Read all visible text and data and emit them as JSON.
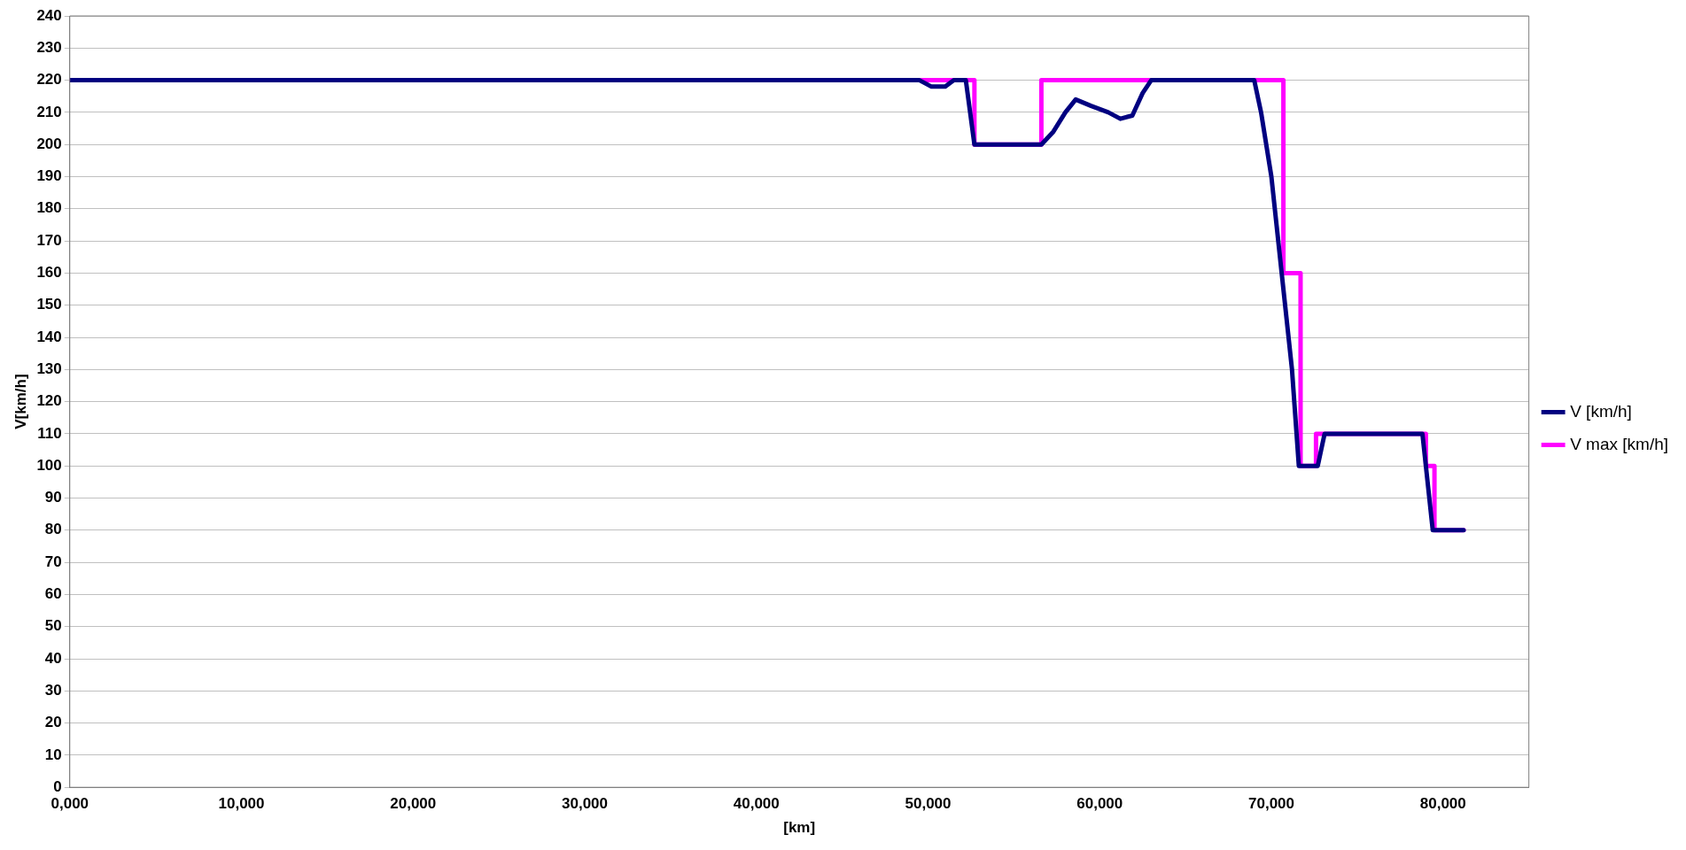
{
  "chart_data": {
    "type": "line",
    "xlabel": "[km]",
    "ylabel": "V[km/h]",
    "xlim": [
      0,
      85000
    ],
    "xticks": [
      {
        "value": 0,
        "label": "0,000"
      },
      {
        "value": 10000,
        "label": "10,000"
      },
      {
        "value": 20000,
        "label": "20,000"
      },
      {
        "value": 30000,
        "label": "30,000"
      },
      {
        "value": 40000,
        "label": "40,000"
      },
      {
        "value": 50000,
        "label": "50,000"
      },
      {
        "value": 60000,
        "label": "60,000"
      },
      {
        "value": 70000,
        "label": "70,000"
      },
      {
        "value": 80000,
        "label": "80,000"
      }
    ],
    "ylim": [
      0,
      240
    ],
    "yticks": [
      0,
      10,
      20,
      30,
      40,
      50,
      60,
      70,
      80,
      90,
      100,
      110,
      120,
      130,
      140,
      150,
      160,
      170,
      180,
      190,
      200,
      210,
      220,
      230,
      240
    ],
    "grid": "y",
    "legend": "right",
    "marker": "none",
    "line_style": "solid",
    "series": [
      {
        "name": "V [km/h]",
        "color": "#000080",
        "x": [
          0,
          49500,
          50200,
          51000,
          51500,
          52200,
          52700,
          56600,
          57300,
          58000,
          58600,
          59500,
          60500,
          61200,
          61900,
          62500,
          63000,
          69000,
          69400,
          70000,
          70600,
          71200,
          71600,
          72700,
          73100,
          78800,
          79000,
          79400,
          81200
        ],
        "values": [
          220,
          220,
          218,
          218,
          220,
          220,
          200,
          200,
          204,
          210,
          214,
          212,
          210,
          208,
          209,
          216,
          220,
          220,
          210,
          190,
          160,
          130,
          100,
          100,
          110,
          110,
          100,
          80,
          80
        ]
      },
      {
        "name": "V max [km/h]",
        "color": "#ff00ff",
        "x": [
          0,
          52700,
          52700,
          56600,
          56600,
          70700,
          70700,
          71700,
          71700,
          72600,
          72600,
          79000,
          79000,
          79500,
          79500,
          81200
        ],
        "values": [
          220,
          220,
          200,
          200,
          220,
          220,
          160,
          160,
          100,
          100,
          110,
          110,
          100,
          100,
          80,
          80
        ]
      }
    ]
  }
}
